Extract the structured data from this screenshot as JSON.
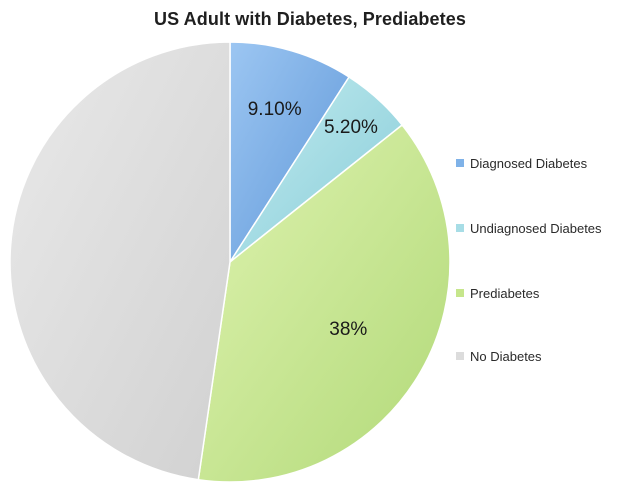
{
  "chart_data": {
    "type": "pie",
    "title": "US Adult with Diabetes, Prediabetes",
    "categories": [
      "Diagnosed Diabetes",
      "Undiagnosed Diabetes",
      "Prediabetes",
      "No Diabetes"
    ],
    "values": [
      9.1,
      5.2,
      38,
      47.7
    ],
    "data_labels": [
      "9.10%",
      "5.20%",
      "38%",
      ""
    ],
    "colors": [
      "#7fb2e8",
      "#a7dde6",
      "#c6e68c",
      "#dcdcdc"
    ],
    "start_angle_deg": 0,
    "direction": "clockwise",
    "legend_position": "right"
  }
}
